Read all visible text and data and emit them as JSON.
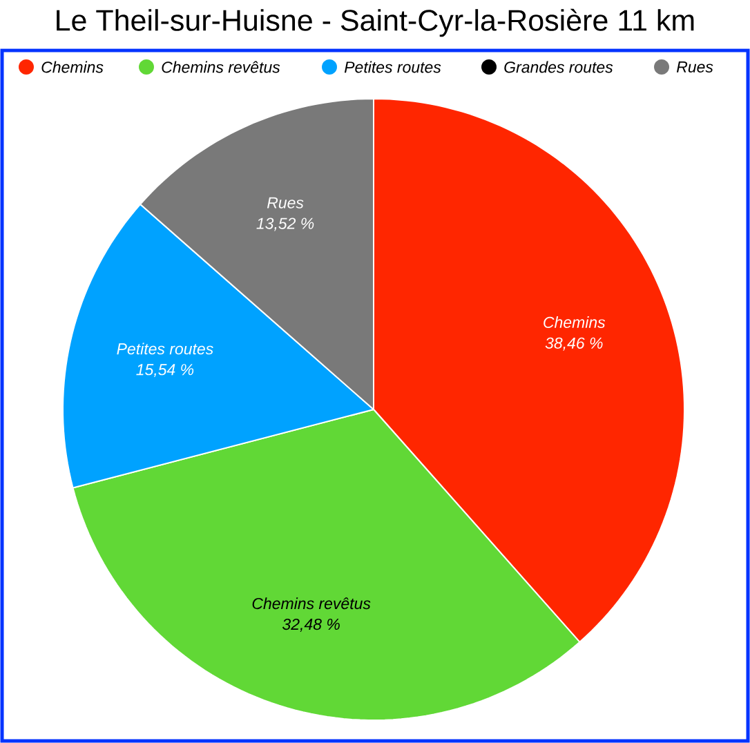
{
  "chart_data": {
    "type": "pie",
    "title": "Le Theil-sur-Huisne - Saint-Cyr-la-Rosière 11 km",
    "categories": [
      "Chemins",
      "Chemins revêtus",
      "Petites routes",
      "Grandes routes",
      "Rues"
    ],
    "values": [
      38.46,
      32.48,
      15.54,
      0,
      13.52
    ],
    "colors": [
      "#ff2600",
      "#61d836",
      "#00a2ff",
      "#000000",
      "#797979"
    ],
    "value_labels": [
      "38,46 %",
      "32,48 %",
      "15,54 %",
      null,
      "13,52 %"
    ],
    "legend": "top"
  }
}
